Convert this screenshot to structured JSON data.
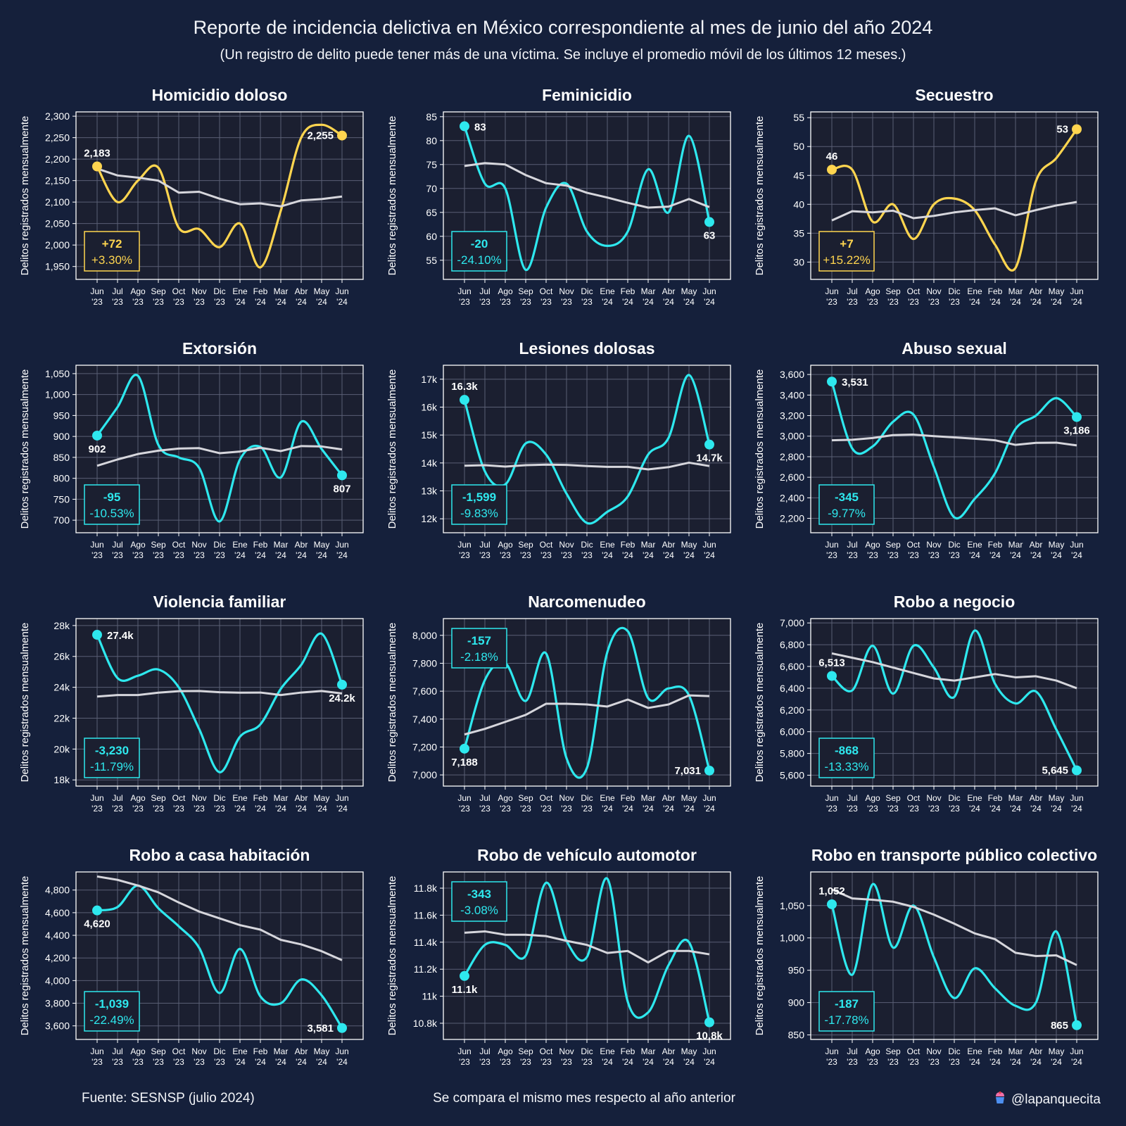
{
  "title": "Reporte de incidencia delictiva en México correspondiente al mes de junio del año 2024",
  "subtitle": "(Un registro de delito puede tener más de una víctima. Se incluye el promedio móvil de los últimos 12 meses.)",
  "footer": {
    "source": "Fuente: SESNSP (julio 2024)",
    "note": "Se compara el mismo mes respecto al año anterior",
    "credit": "@lapanquecita"
  },
  "colors": {
    "background": "#15203b",
    "plot_background": "#1b1f30",
    "increase": "#ffd54f",
    "decrease": "#2ee8ee",
    "moving_average": "#d6d6dc",
    "grid": "#5a5f74"
  },
  "chart_data": [
    {
      "type": "line",
      "title": "Homicidio doloso",
      "ylabel": "Delitos registrados mensualmente",
      "x": [
        "Jun\n'23",
        "Jul\n'23",
        "Ago\n'23",
        "Sep\n'23",
        "Oct\n'23",
        "Nov\n'23",
        "Dic\n'23",
        "Ene\n'24",
        "Feb\n'24",
        "Mar\n'24",
        "Abr\n'24",
        "May\n'24",
        "Jun\n'24"
      ],
      "ylim": [
        1920,
        2310
      ],
      "yticks": [
        1950,
        2000,
        2050,
        2100,
        2150,
        2200,
        2250,
        2300
      ],
      "ytick_labels": [
        "1,950",
        "2,000",
        "2,050",
        "2,100",
        "2,150",
        "2,200",
        "2,250",
        "2,300"
      ],
      "series": [
        {
          "role": "monthly",
          "values": [
            2183,
            2100,
            2150,
            2180,
            2040,
            2037,
            1995,
            2050,
            1948,
            2080,
            2250,
            2280,
            2255
          ]
        },
        {
          "role": "moving_average",
          "values": [
            2178,
            2162,
            2157,
            2150,
            2122,
            2124,
            2108,
            2095,
            2097,
            2090,
            2104,
            2107,
            2113
          ]
        }
      ],
      "start_label": "2,183",
      "end_label": "2,255",
      "change": "+72",
      "change_pct": "+3.30%",
      "trend": "up"
    },
    {
      "type": "line",
      "title": "Feminicidio",
      "ylabel": "Delitos registrados mensualmente",
      "x": [
        "Jun\n'23",
        "Jul\n'23",
        "Ago\n'23",
        "Sep\n'23",
        "Oct\n'23",
        "Nov\n'23",
        "Dic\n'23",
        "Ene\n'24",
        "Feb\n'24",
        "Mar\n'24",
        "Abr\n'24",
        "May\n'24",
        "Jun\n'24"
      ],
      "ylim": [
        51,
        86
      ],
      "yticks": [
        55,
        60,
        65,
        70,
        75,
        80,
        85
      ],
      "ytick_labels": [
        "55",
        "60",
        "65",
        "70",
        "75",
        "80",
        "85"
      ],
      "series": [
        {
          "role": "monthly",
          "values": [
            83,
            71,
            70,
            53,
            66,
            71,
            61,
            58,
            61,
            74,
            65,
            81,
            63
          ]
        },
        {
          "role": "moving_average",
          "values": [
            74.7,
            75.3,
            75,
            72.8,
            71.1,
            70.6,
            69.1,
            68.1,
            67,
            66,
            66.2,
            67.8,
            66.1
          ]
        }
      ],
      "start_label": "83",
      "end_label": "63",
      "change": "-20",
      "change_pct": "-24.10%",
      "trend": "down"
    },
    {
      "type": "line",
      "title": "Secuestro",
      "ylabel": "Delitos registrados mensualmente",
      "x": [
        "Jun\n'23",
        "Jul\n'23",
        "Ago\n'23",
        "Sep\n'23",
        "Oct\n'23",
        "Nov\n'23",
        "Dic\n'23",
        "Ene\n'24",
        "Feb\n'24",
        "Mar\n'24",
        "Abr\n'24",
        "May\n'24",
        "Jun\n'24"
      ],
      "ylim": [
        27,
        56
      ],
      "yticks": [
        30,
        35,
        40,
        45,
        50,
        55
      ],
      "ytick_labels": [
        "30",
        "35",
        "40",
        "45",
        "50",
        "55"
      ],
      "series": [
        {
          "role": "monthly",
          "values": [
            46,
            46,
            37,
            40,
            34,
            40,
            41,
            39,
            33,
            29,
            44,
            48,
            53
          ]
        },
        {
          "role": "moving_average",
          "values": [
            37.2,
            38.8,
            38.6,
            38.9,
            37.6,
            38,
            38.6,
            39,
            39.3,
            38.1,
            39,
            39.8,
            40.4
          ]
        }
      ],
      "start_label": "46",
      "end_label": "53",
      "change": "+7",
      "change_pct": "+15.22%",
      "trend": "up"
    },
    {
      "type": "line",
      "title": "Extorsión",
      "ylabel": "Delitos registrados mensualmente",
      "x": [
        "Jun\n'23",
        "Jul\n'23",
        "Ago\n'23",
        "Sep\n'23",
        "Oct\n'23",
        "Nov\n'23",
        "Dic\n'23",
        "Ene\n'24",
        "Feb\n'24",
        "Mar\n'24",
        "Abr\n'24",
        "May\n'24",
        "Jun\n'24"
      ],
      "ylim": [
        670,
        1070
      ],
      "yticks": [
        700,
        750,
        800,
        850,
        900,
        950,
        1000,
        1050
      ],
      "ytick_labels": [
        "700",
        "750",
        "800",
        "850",
        "900",
        "950",
        "1,000",
        "1,050"
      ],
      "series": [
        {
          "role": "monthly",
          "values": [
            902,
            970,
            1045,
            880,
            850,
            825,
            697,
            845,
            875,
            802,
            935,
            870,
            807
          ]
        },
        {
          "role": "moving_average",
          "values": [
            830,
            845,
            858,
            866,
            871,
            872,
            860,
            864,
            873,
            865,
            877,
            876,
            869
          ]
        }
      ],
      "start_label": "902",
      "end_label": "807",
      "change": "-95",
      "change_pct": "-10.53%",
      "trend": "down"
    },
    {
      "type": "line",
      "title": "Lesiones dolosas",
      "ylabel": "Delitos registrados mensualmente",
      "x": [
        "Jun\n'23",
        "Jul\n'23",
        "Ago\n'23",
        "Sep\n'23",
        "Oct\n'23",
        "Nov\n'23",
        "Dic\n'23",
        "Ene\n'24",
        "Feb\n'24",
        "Mar\n'24",
        "Abr\n'24",
        "May\n'24",
        "Jun\n'24"
      ],
      "ylim": [
        11500,
        17500
      ],
      "yticks": [
        12000,
        13000,
        14000,
        15000,
        16000,
        17000
      ],
      "ytick_labels": [
        "12k",
        "13k",
        "14k",
        "15k",
        "16k",
        "17k"
      ],
      "series": [
        {
          "role": "monthly",
          "values": [
            16260,
            13700,
            13230,
            14700,
            14300,
            12900,
            11850,
            12250,
            12800,
            14300,
            14900,
            17150,
            14660
          ]
        },
        {
          "role": "moving_average",
          "values": [
            13900,
            13920,
            13870,
            13920,
            13940,
            13930,
            13890,
            13860,
            13860,
            13770,
            13850,
            14010,
            13890
          ]
        }
      ],
      "start_label": "16.3k",
      "end_label": "14.7k",
      "change": "-1,599",
      "change_pct": "-9.83%",
      "trend": "down"
    },
    {
      "type": "line",
      "title": "Abuso sexual",
      "ylabel": "Delitos registrados mensualmente",
      "x": [
        "Jun\n'23",
        "Jul\n'23",
        "Ago\n'23",
        "Sep\n'23",
        "Oct\n'23",
        "Nov\n'23",
        "Dic\n'23",
        "Ene\n'24",
        "Feb\n'24",
        "Mar\n'24",
        "Abr\n'24",
        "May\n'24",
        "Jun\n'24"
      ],
      "ylim": [
        2060,
        3690
      ],
      "yticks": [
        2200,
        2400,
        2600,
        2800,
        3000,
        3200,
        3400,
        3600
      ],
      "ytick_labels": [
        "2,200",
        "2,400",
        "2,600",
        "2,800",
        "3,000",
        "3,200",
        "3,400",
        "3,600"
      ],
      "series": [
        {
          "role": "monthly",
          "values": [
            3531,
            2880,
            2900,
            3140,
            3210,
            2700,
            2210,
            2390,
            2640,
            3070,
            3200,
            3370,
            3186
          ]
        },
        {
          "role": "moving_average",
          "values": [
            2960,
            2965,
            2982,
            3010,
            3015,
            3000,
            2988,
            2975,
            2960,
            2915,
            2935,
            2937,
            2910
          ]
        }
      ],
      "start_label": "3,531",
      "end_label": "3,186",
      "change": "-345",
      "change_pct": "-9.77%",
      "trend": "down"
    },
    {
      "type": "line",
      "title": "Violencia familiar",
      "ylabel": "Delitos registrados mensualmente",
      "x": [
        "Jun\n'23",
        "Jul\n'23",
        "Ago\n'23",
        "Sep\n'23",
        "Oct\n'23",
        "Nov\n'23",
        "Dic\n'23",
        "Ene\n'24",
        "Feb\n'24",
        "Mar\n'24",
        "Abr\n'24",
        "May\n'24",
        "Jun\n'24"
      ],
      "ylim": [
        17600,
        28450
      ],
      "yticks": [
        18000,
        20000,
        22000,
        24000,
        26000,
        28000
      ],
      "ytick_labels": [
        "18k",
        "20k",
        "22k",
        "24k",
        "26k",
        "28k"
      ],
      "series": [
        {
          "role": "monthly",
          "values": [
            27400,
            24600,
            24750,
            25150,
            24000,
            21300,
            18500,
            20800,
            21600,
            23900,
            25450,
            27470,
            24170
          ]
        },
        {
          "role": "moving_average",
          "values": [
            23400,
            23500,
            23500,
            23650,
            23750,
            23760,
            23680,
            23650,
            23660,
            23500,
            23660,
            23760,
            23600
          ]
        }
      ],
      "start_label": "27.4k",
      "end_label": "24.2k",
      "change": "-3,230",
      "change_pct": "-11.79%",
      "trend": "down"
    },
    {
      "type": "line",
      "title": "Narcomenudeo",
      "ylabel": "Delitos registrados mensualmente",
      "x": [
        "Jun\n'23",
        "Jul\n'23",
        "Ago\n'23",
        "Sep\n'23",
        "Oct\n'23",
        "Nov\n'23",
        "Dic\n'23",
        "Ene\n'24",
        "Feb\n'24",
        "Mar\n'24",
        "Abr\n'24",
        "May\n'24",
        "Jun\n'24"
      ],
      "ylim": [
        6920,
        8120
      ],
      "yticks": [
        7000,
        7200,
        7400,
        7600,
        7800,
        8000
      ],
      "ytick_labels": [
        "7,000",
        "7,200",
        "7,400",
        "7,600",
        "7,800",
        "8,000"
      ],
      "series": [
        {
          "role": "monthly",
          "values": [
            7188,
            7680,
            7800,
            7530,
            7870,
            7120,
            7050,
            7880,
            8030,
            7550,
            7620,
            7570,
            7031
          ]
        },
        {
          "role": "moving_average",
          "values": [
            7290,
            7330,
            7380,
            7430,
            7510,
            7510,
            7505,
            7490,
            7540,
            7480,
            7505,
            7570,
            7565
          ]
        }
      ],
      "start_label": "7,188",
      "end_label": "7,031",
      "change": "-157",
      "change_pct": "-2.18%",
      "trend": "down"
    },
    {
      "type": "line",
      "title": "Robo a negocio",
      "ylabel": "Delitos registrados mensualmente",
      "x": [
        "Jun\n'23",
        "Jul\n'23",
        "Ago\n'23",
        "Sep\n'23",
        "Oct\n'23",
        "Nov\n'23",
        "Dic\n'23",
        "Ene\n'24",
        "Feb\n'24",
        "Mar\n'24",
        "Abr\n'24",
        "May\n'24",
        "Jun\n'24"
      ],
      "ylim": [
        5500,
        7040
      ],
      "yticks": [
        5600,
        5800,
        6000,
        6200,
        6400,
        6600,
        6800,
        7000
      ],
      "ytick_labels": [
        "5,600",
        "5,800",
        "6,000",
        "6,200",
        "6,400",
        "6,600",
        "6,800",
        "7,000"
      ],
      "series": [
        {
          "role": "monthly",
          "values": [
            6513,
            6380,
            6790,
            6350,
            6790,
            6590,
            6320,
            6930,
            6440,
            6260,
            6370,
            6020,
            5645
          ]
        },
        {
          "role": "moving_average",
          "values": [
            6720,
            6680,
            6640,
            6590,
            6540,
            6490,
            6470,
            6500,
            6530,
            6500,
            6510,
            6470,
            6400
          ]
        }
      ],
      "start_label": "6,513",
      "end_label": "5,645",
      "change": "-868",
      "change_pct": "-13.33%",
      "trend": "down"
    },
    {
      "type": "line",
      "title": "Robo a casa habitación",
      "ylabel": "Delitos registrados mensualmente",
      "x": [
        "Jun\n'23",
        "Jul\n'23",
        "Ago\n'23",
        "Sep\n'23",
        "Oct\n'23",
        "Nov\n'23",
        "Dic\n'23",
        "Ene\n'24",
        "Feb\n'24",
        "Mar\n'24",
        "Abr\n'24",
        "May\n'24",
        "Jun\n'24"
      ],
      "ylim": [
        3480,
        4960
      ],
      "yticks": [
        3600,
        3800,
        4000,
        4200,
        4400,
        4600,
        4800
      ],
      "ytick_labels": [
        "3,600",
        "3,800",
        "4,000",
        "4,200",
        "4,400",
        "4,600",
        "4,800"
      ],
      "series": [
        {
          "role": "monthly",
          "values": [
            4620,
            4650,
            4840,
            4640,
            4480,
            4290,
            3890,
            4280,
            3860,
            3800,
            4010,
            3870,
            3581
          ]
        },
        {
          "role": "moving_average",
          "values": [
            4920,
            4890,
            4840,
            4780,
            4690,
            4610,
            4550,
            4490,
            4450,
            4360,
            4320,
            4260,
            4180
          ]
        }
      ],
      "start_label": "4,620",
      "end_label": "3,581",
      "change": "-1,039",
      "change_pct": "-22.49%",
      "trend": "down"
    },
    {
      "type": "line",
      "title": "Robo de vehículo automotor",
      "ylabel": "Delitos registrados mensualmente",
      "x": [
        "Jun\n'23",
        "Jul\n'23",
        "Ago\n'23",
        "Sep\n'23",
        "Oct\n'23",
        "Nov\n'23",
        "Dic\n'23",
        "Ene\n'24",
        "Feb\n'24",
        "Mar\n'24",
        "Abr\n'24",
        "May\n'24",
        "Jun\n'24"
      ],
      "ylim": [
        10680,
        11920
      ],
      "yticks": [
        10800,
        11000,
        11200,
        11400,
        11600,
        11800
      ],
      "ytick_labels": [
        "10.8k",
        "11k",
        "11.2k",
        "11.4k",
        "11.6k",
        "11.8k"
      ],
      "series": [
        {
          "role": "monthly",
          "values": [
            11150,
            11380,
            11380,
            11300,
            11840,
            11410,
            11290,
            11870,
            10960,
            10880,
            11230,
            11400,
            10807
          ]
        },
        {
          "role": "moving_average",
          "values": [
            11470,
            11480,
            11455,
            11455,
            11445,
            11410,
            11380,
            11320,
            11335,
            11250,
            11335,
            11335,
            11310
          ]
        }
      ],
      "start_label": "11.1k",
      "end_label": "10.8k",
      "change": "-343",
      "change_pct": "-3.08%",
      "trend": "down"
    },
    {
      "type": "line",
      "title": "Robo en transporte público colectivo",
      "ylabel": "Delitos registrados mensualmente",
      "x": [
        "Jun\n'23",
        "Jul\n'23",
        "Ago\n'23",
        "Sep\n'23",
        "Oct\n'23",
        "Nov\n'23",
        "Dic\n'23",
        "Ene\n'24",
        "Feb\n'24",
        "Mar\n'24",
        "Abr\n'24",
        "May\n'24",
        "Jun\n'24"
      ],
      "ylim": [
        843,
        1102
      ],
      "yticks": [
        850,
        900,
        950,
        1000,
        1050
      ],
      "ytick_labels": [
        "850",
        "900",
        "950",
        "1,000",
        "1,050"
      ],
      "series": [
        {
          "role": "monthly",
          "values": [
            1052,
            943,
            1083,
            985,
            1050,
            970,
            907,
            953,
            922,
            895,
            900,
            1010,
            865
          ]
        },
        {
          "role": "moving_average",
          "values": [
            1075,
            1061,
            1059,
            1056,
            1048,
            1036,
            1022,
            1007,
            998,
            977,
            972,
            973,
            958
          ]
        }
      ],
      "start_label": "1,052",
      "end_label": "865",
      "change": "-187",
      "change_pct": "-17.78%",
      "trend": "down"
    }
  ]
}
